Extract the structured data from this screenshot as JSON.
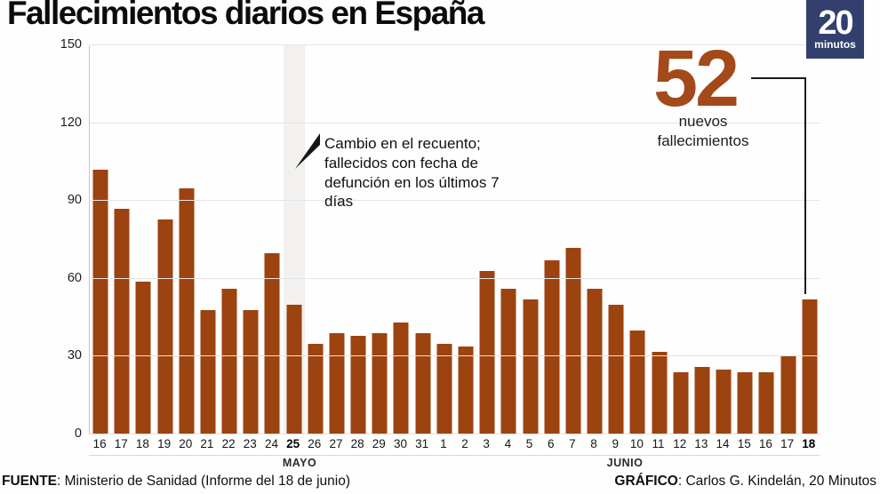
{
  "title": "Fallecimientos diarios en España",
  "logo": {
    "big": "20",
    "small": "minutos"
  },
  "colors": {
    "bar": "#9C430F",
    "accent_number": "#A4491A",
    "logo_bg": "#33406D",
    "grid": "#e4e4e4",
    "highlight_band": "#F2F1EF",
    "callout_line": "#191919"
  },
  "annotation": {
    "text": "Cambio en el recuento; fallecidos con fecha de defunción en los últimos 7 días"
  },
  "callout": {
    "value": "52",
    "label": "nuevos fallecimientos"
  },
  "footer": {
    "source_label": "FUENTE",
    "source_rest": ": Ministerio de Sanidad (Informe del 18 de junio)",
    "credit_label": "GRÁFICO",
    "credit_rest": ": Carlos G. Kindelán, 20 Minutos"
  },
  "chart_data": {
    "type": "bar",
    "title": "Fallecimientos diarios en España",
    "xlabel": "",
    "ylabel": "",
    "ylim": [
      0,
      150
    ],
    "yticks": [
      0,
      30,
      60,
      90,
      120,
      150
    ],
    "grid": true,
    "categories": [
      "16",
      "17",
      "18",
      "19",
      "20",
      "21",
      "22",
      "23",
      "24",
      "25",
      "26",
      "27",
      "28",
      "29",
      "30",
      "31",
      "1",
      "2",
      "3",
      "4",
      "5",
      "6",
      "7",
      "8",
      "9",
      "10",
      "11",
      "12",
      "13",
      "14",
      "15",
      "16",
      "17",
      "18"
    ],
    "values": [
      102,
      87,
      59,
      83,
      95,
      48,
      56,
      48,
      70,
      50,
      35,
      39,
      38,
      39,
      43,
      39,
      35,
      34,
      63,
      56,
      52,
      67,
      72,
      56,
      50,
      40,
      32,
      24,
      26,
      25,
      24,
      24,
      30,
      52
    ],
    "months": [
      {
        "label": "MAYO",
        "start_index": 0,
        "end_index": 15
      },
      {
        "label": "JUNIO",
        "start_index": 16,
        "end_index": 33
      }
    ],
    "highlight_index": 9,
    "bold_label_indices": [
      9,
      33
    ],
    "last_value_callout": 52
  }
}
